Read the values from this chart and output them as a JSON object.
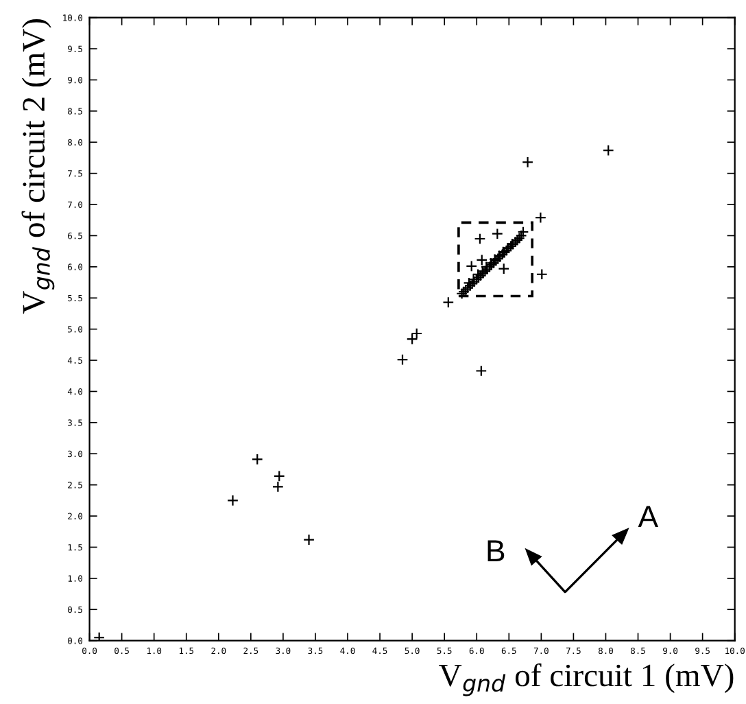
{
  "chart_data": {
    "type": "scatter",
    "xlabel": "V$_{gnd}$ of circuit 1 (mV)",
    "ylabel": "V$_{gnd}$ of circuit 2 (mV)",
    "annotations": [
      "A",
      "B"
    ],
    "xlim": [
      0,
      10
    ],
    "ylim": [
      0,
      10
    ],
    "xticks": [
      {
        "value": 0,
        "label": "0.0"
      },
      {
        "value": 0.5,
        "label": "0.5"
      },
      {
        "value": 1,
        "label": "1.0"
      },
      {
        "value": 1.5,
        "label": "1.5"
      },
      {
        "value": 2,
        "label": "2.0"
      },
      {
        "value": 2.5,
        "label": "2.5"
      },
      {
        "value": 3,
        "label": "3.0"
      },
      {
        "value": 3.5,
        "label": "3.5"
      },
      {
        "value": 4,
        "label": "4.0"
      },
      {
        "value": 4.5,
        "label": "4.5"
      },
      {
        "value": 5,
        "label": "5.0"
      },
      {
        "value": 5.5,
        "label": "5.5"
      },
      {
        "value": 6,
        "label": "6.0"
      },
      {
        "value": 6.5,
        "label": "6.5"
      },
      {
        "value": 7,
        "label": "7.0"
      },
      {
        "value": 7.5,
        "label": "7.5"
      },
      {
        "value": 8,
        "label": "8.0"
      },
      {
        "value": 8.5,
        "label": "8.5"
      },
      {
        "value": 9,
        "label": "9.0"
      },
      {
        "value": 9.5,
        "label": "9.5"
      },
      {
        "value": 10,
        "label": "10.0"
      }
    ],
    "yticks": [
      {
        "value": 0,
        "label": "0.0"
      },
      {
        "value": 0.5,
        "label": "0.5"
      },
      {
        "value": 1,
        "label": "1.0"
      },
      {
        "value": 1.5,
        "label": "1.5"
      },
      {
        "value": 2,
        "label": "2.0"
      },
      {
        "value": 2.5,
        "label": "2.5"
      },
      {
        "value": 3,
        "label": "3.0"
      },
      {
        "value": 3.5,
        "label": "3.5"
      },
      {
        "value": 4,
        "label": "4.0"
      },
      {
        "value": 4.5,
        "label": "4.5"
      },
      {
        "value": 5,
        "label": "5.0"
      },
      {
        "value": 5.5,
        "label": "5.5"
      },
      {
        "value": 6,
        "label": "6.0"
      },
      {
        "value": 6.5,
        "label": "6.5"
      },
      {
        "value": 7,
        "label": "7.0"
      },
      {
        "value": 7.5,
        "label": "7.5"
      },
      {
        "value": 8,
        "label": "8.0"
      },
      {
        "value": 8.5,
        "label": "8.5"
      },
      {
        "value": 9,
        "label": "9.0"
      },
      {
        "value": 9.5,
        "label": "9.5"
      },
      {
        "value": 10,
        "label": "10.0"
      }
    ],
    "marker": "cross",
    "grid": false,
    "legend": false,
    "series": [
      {
        "color": "#000000",
        "x": [
          0.15,
          2.22,
          2.6,
          2.92,
          2.94,
          3.4,
          4.85,
          5.0,
          5.07,
          5.56,
          6.07,
          6.79,
          8.04,
          6.99,
          7.01,
          6.05,
          6.32,
          6.08,
          5.92,
          6.42,
          5.77,
          5.8,
          5.83,
          5.86,
          5.9,
          5.93,
          5.96,
          6.0,
          6.03,
          6.06,
          6.1,
          6.13,
          6.16,
          6.2,
          6.23,
          6.26,
          6.3,
          6.33,
          6.36,
          6.4,
          6.43,
          6.46,
          6.5,
          6.53,
          6.56,
          6.6,
          6.63,
          6.66,
          6.69,
          6.72,
          5.88,
          5.95,
          6.02,
          6.09,
          6.15,
          6.22,
          6.28,
          6.35,
          6.41,
          6.48,
          6.55
        ],
        "values": [
          0.05,
          2.25,
          2.91,
          2.47,
          2.64,
          1.62,
          4.51,
          4.84,
          4.93,
          5.43,
          4.33,
          7.68,
          7.87,
          6.79,
          5.88,
          6.45,
          6.53,
          6.11,
          6.01,
          5.97,
          5.57,
          5.6,
          5.63,
          5.66,
          5.7,
          5.73,
          5.76,
          5.8,
          5.83,
          5.86,
          5.9,
          5.93,
          5.96,
          6.0,
          6.03,
          6.06,
          6.1,
          6.13,
          6.16,
          6.2,
          6.23,
          6.26,
          6.3,
          6.33,
          6.36,
          6.4,
          6.43,
          6.46,
          6.5,
          6.56,
          5.74,
          5.8,
          5.88,
          5.93,
          6.0,
          6.06,
          6.12,
          6.18,
          6.24,
          6.3,
          6.37
        ]
      }
    ]
  }
}
